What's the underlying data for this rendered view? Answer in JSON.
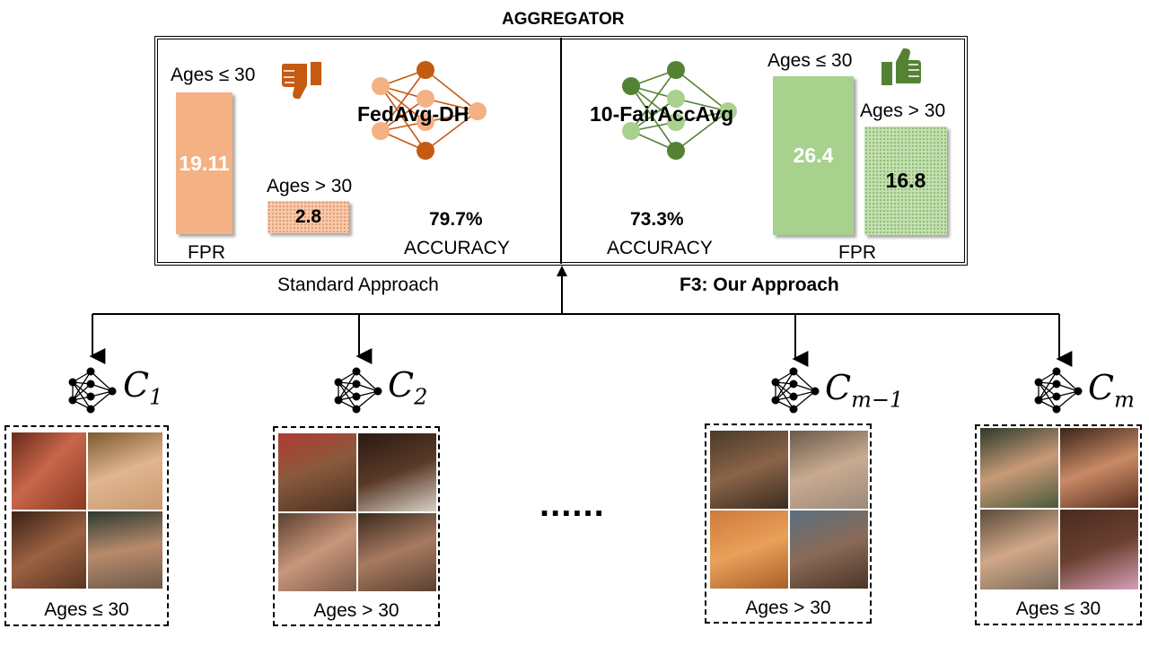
{
  "aggregator_title": "AGGREGATOR",
  "standard": {
    "caption": "Standard Approach",
    "model_name": "FedAvg-DH",
    "accuracy_value": "79.7%",
    "accuracy_label": "ACCURACY",
    "fpr_label": "FPR",
    "group_young_label": "Ages ≤ 30",
    "group_old_label": "Ages > 30",
    "fpr_young": 19.11,
    "fpr_old": 2.8,
    "fpr_young_text": "19.11",
    "fpr_old_text": "2.8",
    "verdict_icon": "thumbs-down-icon",
    "color": "#c55a11"
  },
  "ours": {
    "caption": "F3: Our Approach",
    "model_name": "10-FairAccAvg",
    "accuracy_value": "73.3%",
    "accuracy_label": "ACCURACY",
    "fpr_label": "FPR",
    "group_young_label": "Ages ≤ 30",
    "group_old_label": "Ages > 30",
    "fpr_young": 26.4,
    "fpr_old": 16.8,
    "fpr_young_text": "26.4",
    "fpr_old_text": "16.8",
    "verdict_icon": "thumbs-up-icon",
    "color": "#548235"
  },
  "clients": [
    {
      "name": "C",
      "sub": "1",
      "age_group": "Ages ≤ 30"
    },
    {
      "name": "C",
      "sub": "2",
      "age_group": "Ages > 30"
    },
    {
      "name": "C",
      "sub": "m−1",
      "age_group": "Ages > 30"
    },
    {
      "name": "C",
      "sub": "m",
      "age_group": "Ages ≤ 30"
    }
  ],
  "ellipsis": "......"
}
